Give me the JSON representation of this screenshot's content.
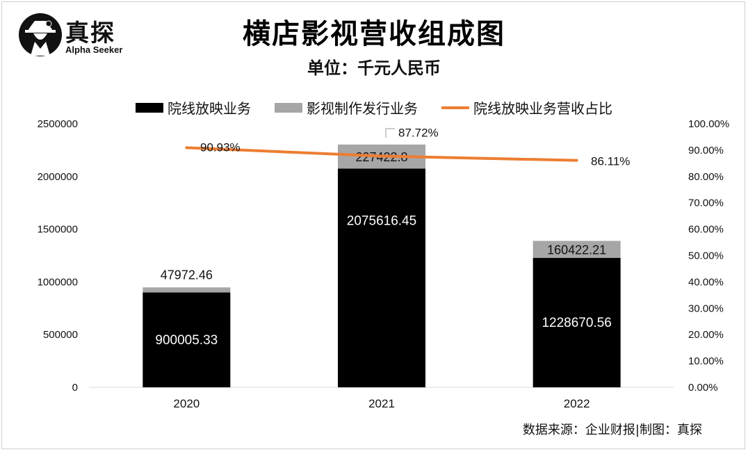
{
  "brand": {
    "name": "真探",
    "tagline": "Alpha Seeker"
  },
  "title": "横店影视营收组成图",
  "subtitle": "单位：千元人民币",
  "source": "数据来源：企业财报|制图：真探",
  "colors": {
    "screening": "#000000",
    "production": "#a6a6a6",
    "ratio_line": "#ed7d31"
  },
  "chart_data": {
    "type": "bar",
    "stacked": true,
    "categories": [
      "2020",
      "2021",
      "2022"
    ],
    "series": [
      {
        "name": "院线放映业务",
        "values": [
          900005.33,
          2075616.45,
          1228670.56
        ],
        "labels": [
          "900005.33",
          "2075616.45",
          "1228670.56"
        ]
      },
      {
        "name": "影视制作发行业务",
        "values": [
          47972.46,
          227422.8,
          160422.21
        ],
        "labels": [
          "47972.46",
          "227422.8",
          "160422.21"
        ]
      }
    ],
    "line_series": {
      "name": "院线放映业务营收占比",
      "axis": "right",
      "values": [
        90.93,
        87.72,
        86.11
      ],
      "labels": [
        "90.93%",
        "87.72%",
        "86.11%"
      ]
    },
    "y_left": {
      "range": [
        0,
        2500000
      ],
      "ticks": [
        "0",
        "500000",
        "1000000",
        "1500000",
        "2000000",
        "2500000"
      ]
    },
    "y_right": {
      "range": [
        0,
        100
      ],
      "ticks": [
        "0.00%",
        "10.00%",
        "20.00%",
        "30.00%",
        "40.00%",
        "50.00%",
        "60.00%",
        "70.00%",
        "80.00%",
        "90.00%",
        "100.00%"
      ]
    },
    "grid": false,
    "legend_position": "top"
  }
}
